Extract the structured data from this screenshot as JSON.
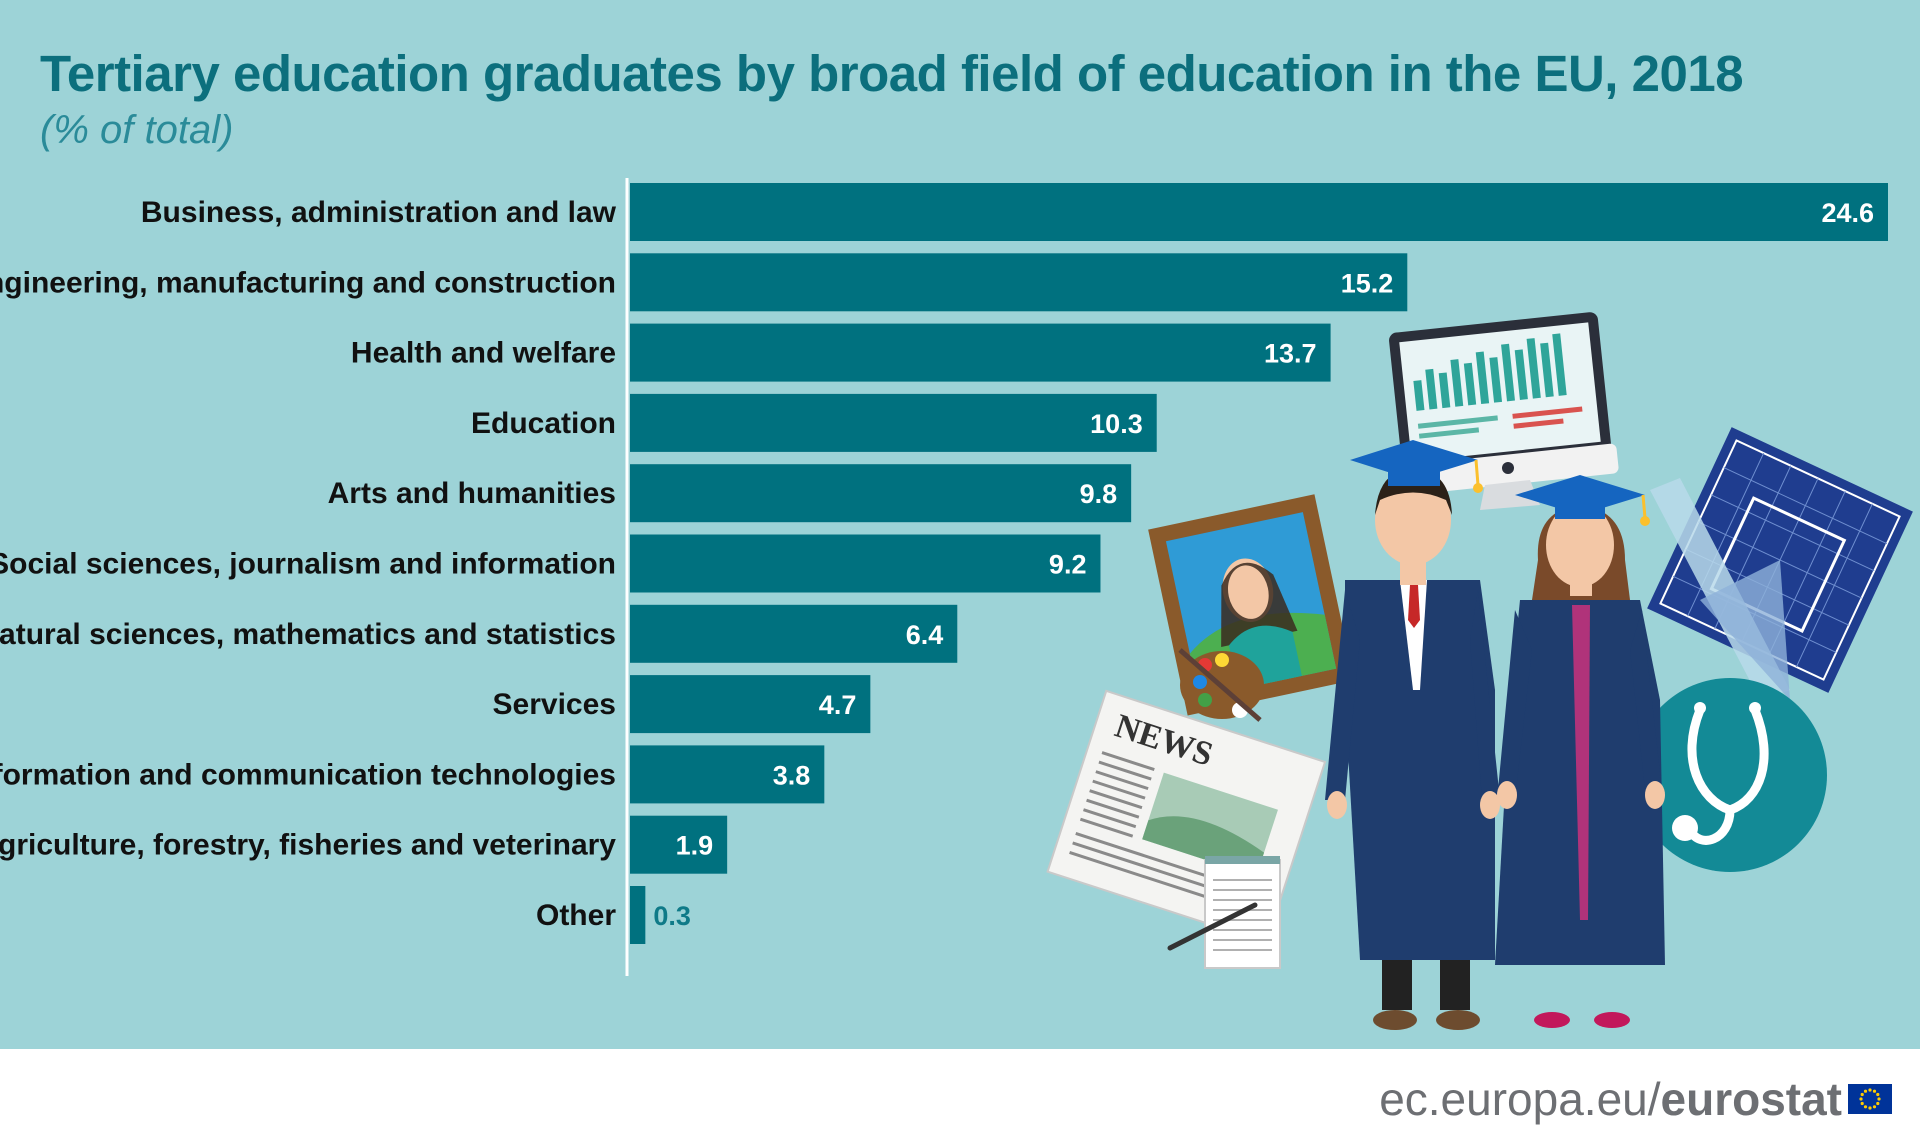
{
  "header": {
    "title": "Tertiary education graduates by broad field of education in the EU, 2018",
    "subtitle": "(% of total)"
  },
  "chart_data": {
    "type": "bar",
    "orientation": "horizontal",
    "title": "Tertiary education graduates by broad field of education in the EU, 2018",
    "subtitle": "(% of total)",
    "categories": [
      "Business, administration and law",
      "Engineering, manufacturing and construction",
      "Health and welfare",
      "Education",
      "Arts and humanities",
      "Social sciences, journalism and information",
      "Natural sciences, mathematics and statistics",
      "Services",
      "Information and communication technologies",
      "Agriculture, forestry, fisheries and veterinary",
      "Other"
    ],
    "values": [
      24.6,
      15.2,
      13.7,
      10.3,
      9.8,
      9.2,
      6.4,
      4.7,
      3.8,
      1.9,
      0.3
    ],
    "value_labels": [
      "24.6",
      "15.2",
      "13.7",
      "10.3",
      "9.8",
      "9.2",
      "6.4",
      "4.7",
      "3.8",
      "1.9",
      "0.3"
    ],
    "xlim": [
      0,
      24.6
    ],
    "grid": false,
    "legend": "none",
    "bar_color": "#00717f"
  },
  "footer": {
    "site": "ec.europa.eu/",
    "brand": "eurostat"
  },
  "colors": {
    "background": "#9dd3d7",
    "bar": "#00717f",
    "title": "#0c6f7d",
    "illustration_navy": "#1f3d6e"
  },
  "illustration": {
    "icons": [
      "computer-monitor-icon",
      "graduate-male-icon",
      "graduate-female-icon",
      "painting-icon",
      "palette-icon",
      "newspaper-icon",
      "notepad-icon",
      "blueprint-icon",
      "stethoscope-icon"
    ]
  }
}
